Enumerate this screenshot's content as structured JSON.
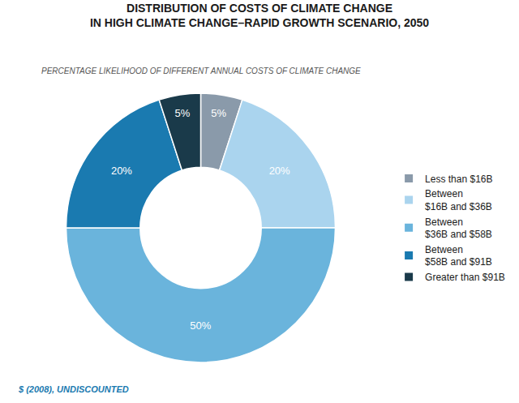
{
  "chart_data": {
    "type": "donut",
    "title": "DISTRIBUTION OF COSTS OF CLIMATE CHANGE\nIN HIGH CLIMATE CHANGE–RAPID GROWTH SCENARIO, 2050",
    "subtitle": "PERCENTAGE LIKELIHOOD OF DIFFERENT ANNUAL COSTS OF CLIMATE CHANGE",
    "annotations": [
      "$ (2008), UNDISCOUNTED"
    ],
    "categories": [
      "Less than $16B",
      "Between\n$16B and $36B",
      "Between\n$36B and $58B",
      "Between\n$58B and $91B",
      "Greater than $91B"
    ],
    "values": [
      5,
      20,
      50,
      20,
      5
    ],
    "value_labels": [
      "5%",
      "20%",
      "50%",
      "20%",
      "5%"
    ],
    "colors": [
      "#8a9aaa",
      "#aad4ee",
      "#6ab4dc",
      "#1a7ab0",
      "#1a3a4a"
    ],
    "data_labels": true,
    "legend": "right"
  }
}
